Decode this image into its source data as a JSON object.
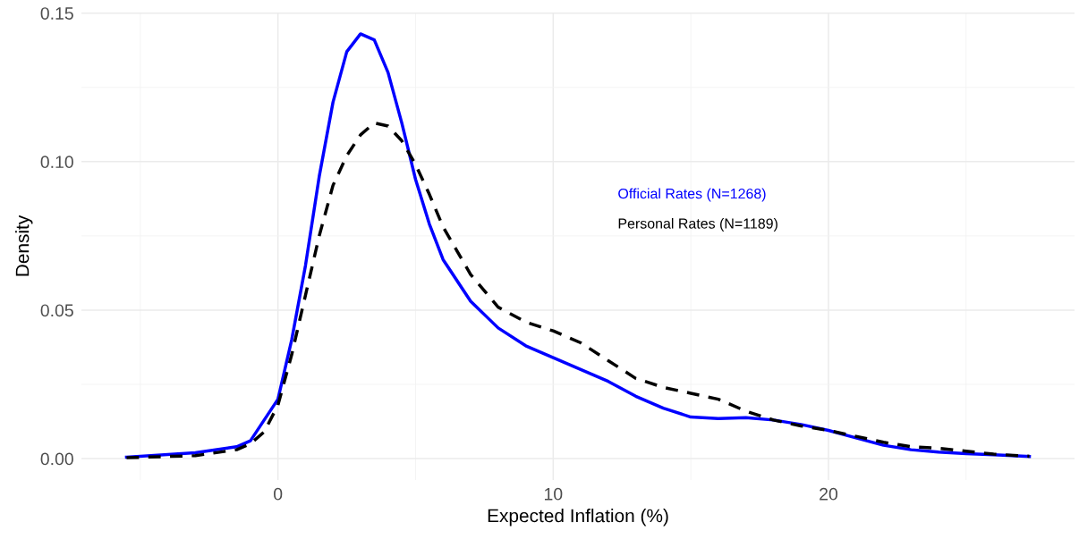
{
  "chart_data": {
    "type": "line",
    "xlabel": "Expected Inflation (%)",
    "ylabel": "Density",
    "xlim": [
      -7.14,
      28.94
    ],
    "ylim": [
      -0.0072,
      0.1502
    ],
    "xticks": [
      0,
      10,
      20
    ],
    "yticks": [
      {
        "value": 0,
        "label": "0.00"
      },
      {
        "value": 0.05,
        "label": "0.05"
      },
      {
        "value": 0.1,
        "label": "0.10"
      },
      {
        "value": 0.15,
        "label": "0.15"
      }
    ],
    "grid": true,
    "legend": "right",
    "marker": "none",
    "series": [
      {
        "name": "Official Rates (N=1268)",
        "color": "#0000ff",
        "line_style": "solid",
        "x": [
          -5.5,
          -3,
          -1.5,
          -1,
          0,
          0.5,
          1,
          1.5,
          2,
          2.5,
          3,
          3.5,
          4,
          4.5,
          5,
          5.5,
          6,
          7,
          8,
          9,
          10,
          11,
          12,
          13,
          14,
          15,
          16,
          17,
          18,
          19,
          20,
          21,
          22,
          23,
          24,
          25,
          26,
          27.3
        ],
        "values": [
          0.0005,
          0.002,
          0.004,
          0.006,
          0.02,
          0.04,
          0.065,
          0.095,
          0.12,
          0.137,
          0.143,
          0.141,
          0.13,
          0.113,
          0.094,
          0.079,
          0.067,
          0.053,
          0.044,
          0.038,
          0.034,
          0.03,
          0.026,
          0.021,
          0.017,
          0.014,
          0.0135,
          0.0138,
          0.013,
          0.0115,
          0.0095,
          0.007,
          0.0045,
          0.003,
          0.0022,
          0.0017,
          0.0013,
          0.0007
        ]
      },
      {
        "name": "Personal Rates (N=1189)",
        "color": "#000000",
        "line_style": "dashed",
        "x": [
          -5.5,
          -3,
          -1.5,
          -1,
          -0.5,
          0,
          0.5,
          1,
          1.5,
          2,
          2.5,
          3,
          3.5,
          4,
          4.5,
          5,
          5.5,
          6,
          7,
          8,
          9,
          10,
          11,
          12,
          13,
          14,
          15,
          16,
          17,
          18,
          19,
          20,
          21,
          22,
          23,
          24,
          25,
          26,
          27.3
        ],
        "values": [
          0.0003,
          0.001,
          0.003,
          0.005,
          0.009,
          0.018,
          0.035,
          0.055,
          0.075,
          0.092,
          0.102,
          0.109,
          0.113,
          0.112,
          0.107,
          0.099,
          0.089,
          0.078,
          0.062,
          0.051,
          0.046,
          0.043,
          0.039,
          0.033,
          0.027,
          0.024,
          0.022,
          0.02,
          0.016,
          0.013,
          0.011,
          0.0095,
          0.0075,
          0.0055,
          0.004,
          0.0035,
          0.0025,
          0.0015,
          0.0008
        ]
      }
    ]
  }
}
